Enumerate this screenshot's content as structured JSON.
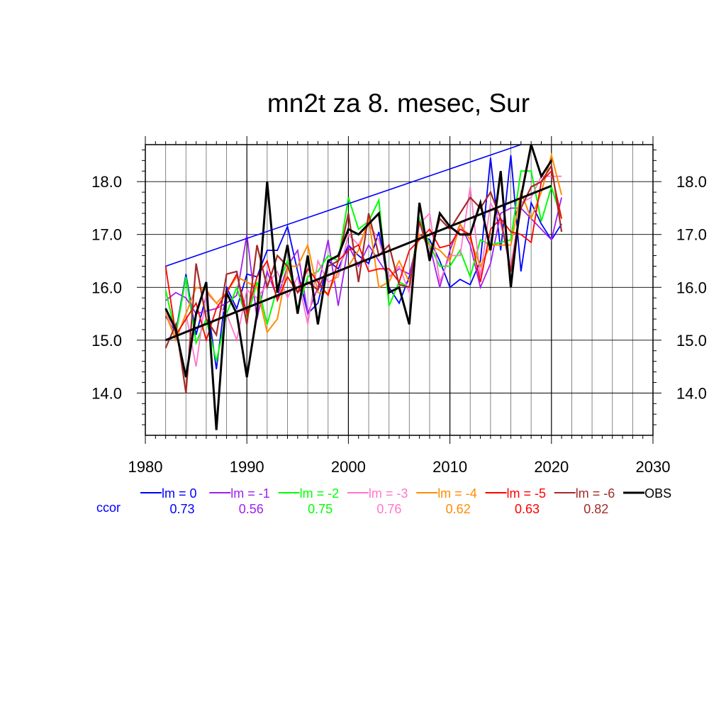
{
  "chart_data": {
    "type": "line",
    "title": "mn2t za 8. mesec, Sur",
    "xlim": [
      1980,
      2030
    ],
    "ylim": [
      13.2,
      18.7
    ],
    "xticks": [
      1980,
      1990,
      2000,
      2010,
      2020,
      2030
    ],
    "yticks": [
      14.0,
      15.0,
      16.0,
      17.0,
      18.0
    ],
    "ytick_labels": [
      "14.0",
      "15.0",
      "16.0",
      "17.0",
      "18.0"
    ],
    "grid": true,
    "legend_position": "bottom",
    "ccor_label": "ccor",
    "ccor_color": "#0000ff",
    "x": [
      1982,
      1983,
      1984,
      1985,
      1986,
      1987,
      1988,
      1989,
      1990,
      1991,
      1992,
      1993,
      1994,
      1995,
      1996,
      1997,
      1998,
      1999,
      2000,
      2001,
      2002,
      2003,
      2004,
      2005,
      2006,
      2007,
      2008,
      2009,
      2010,
      2011,
      2012,
      2013,
      2014,
      2015,
      2016,
      2017,
      2018,
      2019,
      2020,
      2021
    ],
    "series": [
      {
        "name": "lm = 0",
        "color": "#0000ff",
        "width": 1.8,
        "ccor": "0.73",
        "values": [
          15.45,
          15.15,
          16.25,
          15.1,
          15.85,
          14.45,
          16.0,
          15.6,
          16.25,
          16.2,
          16.7,
          16.7,
          17.15,
          16.3,
          15.5,
          15.7,
          16.5,
          16.35,
          16.8,
          16.6,
          16.45,
          17.05,
          16.0,
          15.7,
          16.2,
          17.0,
          16.9,
          16.5,
          16.0,
          16.15,
          16.05,
          16.5,
          18.45,
          16.7,
          18.5,
          16.3,
          17.6,
          17.2,
          16.9,
          17.2
        ]
      },
      {
        "name": "lm = -1",
        "color": "#a020f0",
        "width": 1.8,
        "ccor": "0.56",
        "values": [
          15.75,
          15.9,
          15.8,
          15.5,
          15.55,
          15.6,
          15.7,
          15.85,
          17.0,
          15.4,
          16.3,
          15.8,
          16.4,
          16.7,
          15.5,
          16.0,
          16.9,
          15.65,
          16.8,
          16.4,
          16.8,
          16.5,
          16.2,
          16.35,
          16.25,
          17.0,
          16.8,
          16.0,
          16.7,
          17.2,
          16.8,
          16.0,
          16.45,
          17.4,
          17.5,
          17.5,
          17.3,
          17.1,
          16.9,
          17.7
        ]
      },
      {
        "name": "lm = -2",
        "color": "#00ff00",
        "width": 2.0,
        "ccor": "0.75",
        "values": [
          15.95,
          15.1,
          16.2,
          14.95,
          15.4,
          14.6,
          15.5,
          16.0,
          15.4,
          16.1,
          15.3,
          16.0,
          16.5,
          15.6,
          16.2,
          16.3,
          16.6,
          16.5,
          17.7,
          17.1,
          17.25,
          17.65,
          15.65,
          16.1,
          16.0,
          17.3,
          16.8,
          16.4,
          16.4,
          16.7,
          16.2,
          16.9,
          16.8,
          16.85,
          16.9,
          18.2,
          18.2,
          17.25,
          17.9,
          17.3
        ]
      },
      {
        "name": "lm = -3",
        "color": "#ff77cc",
        "width": 1.8,
        "ccor": "0.76",
        "values": [
          15.6,
          15.0,
          15.5,
          14.5,
          15.9,
          15.7,
          15.5,
          15.0,
          15.95,
          15.8,
          16.05,
          16.3,
          15.8,
          16.2,
          15.3,
          16.5,
          16.1,
          16.2,
          17.0,
          16.8,
          17.2,
          16.9,
          16.2,
          16.4,
          15.9,
          17.2,
          17.4,
          16.1,
          16.6,
          16.6,
          17.9,
          16.2,
          17.6,
          17.2,
          16.4,
          17.6,
          17.7,
          18.1,
          18.1,
          18.1
        ]
      },
      {
        "name": "lm = -4",
        "color": "#ff8c00",
        "width": 2.0,
        "ccor": "0.62",
        "values": [
          15.5,
          15.0,
          15.5,
          16.0,
          15.95,
          15.7,
          15.9,
          16.2,
          16.1,
          16.0,
          15.15,
          15.4,
          16.4,
          16.4,
          16.8,
          15.9,
          15.9,
          16.3,
          16.4,
          16.7,
          17.3,
          16.0,
          16.1,
          16.5,
          16.1,
          17.0,
          16.8,
          16.7,
          16.5,
          17.2,
          16.9,
          16.4,
          16.8,
          16.8,
          16.8,
          17.8,
          17.3,
          17.8,
          18.5,
          17.75
        ]
      },
      {
        "name": "lm = -5",
        "color": "#ff0000",
        "width": 1.8,
        "ccor": "0.63",
        "values": [
          16.4,
          15.1,
          15.4,
          15.7,
          15.0,
          15.6,
          15.9,
          16.25,
          15.5,
          16.2,
          16.5,
          15.75,
          16.2,
          15.9,
          16.35,
          16.1,
          15.85,
          16.5,
          16.7,
          16.8,
          16.3,
          16.35,
          16.35,
          16.1,
          16.7,
          16.9,
          17.1,
          16.75,
          16.8,
          17.1,
          17.0,
          16.1,
          17.1,
          17.3,
          17.05,
          17.0,
          16.85,
          18.0,
          18.2,
          17.3
        ]
      },
      {
        "name": "lm = -6",
        "color": "#a52a2a",
        "width": 2.2,
        "ccor": "0.82",
        "values": [
          14.85,
          15.3,
          14.0,
          16.45,
          15.4,
          15.1,
          16.25,
          16.3,
          15.3,
          16.8,
          16.0,
          16.6,
          16.4,
          15.9,
          16.1,
          15.95,
          16.4,
          16.5,
          17.4,
          16.1,
          17.4,
          16.6,
          16.8,
          16.05,
          16.0,
          17.25,
          16.6,
          17.3,
          17.1,
          17.4,
          17.7,
          17.5,
          17.8,
          17.3,
          16.3,
          17.5,
          17.9,
          18.0,
          18.3,
          17.05
        ]
      },
      {
        "name": "OBS",
        "color": "#000000",
        "width": 3.0,
        "ccor": "",
        "values": [
          15.6,
          15.2,
          14.3,
          15.5,
          16.1,
          13.3,
          15.9,
          15.5,
          14.3,
          15.5,
          18.0,
          15.9,
          16.8,
          15.5,
          16.6,
          15.3,
          16.5,
          16.6,
          17.1,
          17.0,
          17.2,
          17.4,
          15.9,
          16.0,
          15.3,
          17.6,
          16.5,
          17.4,
          17.15,
          17.0,
          17.0,
          17.6,
          16.7,
          18.2,
          16.0,
          17.7,
          18.7,
          18.1,
          18.4,
          null
        ]
      }
    ],
    "trend_lines": [
      {
        "color": "#000000",
        "width": 3.0,
        "x": [
          1982,
          2020
        ],
        "y": [
          15.0,
          17.92
        ]
      },
      {
        "color": "#0000ff",
        "width": 1.6,
        "x": [
          1982,
          2017
        ],
        "y": [
          16.4,
          18.7
        ]
      }
    ]
  }
}
